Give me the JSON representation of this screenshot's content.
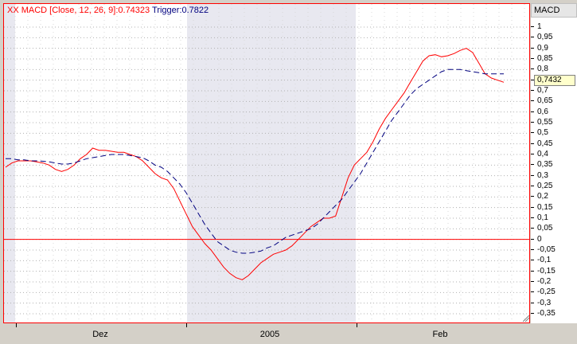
{
  "legend": {
    "text_macd": "XX MACD [Close, 12, 26, 9]:0.74323",
    "text_trigger": "Trigger:0.7822"
  },
  "axis": {
    "title": "MACD",
    "current_value_tag": "0,7432"
  },
  "colors": {
    "macd_line": "#ff0000",
    "trigger_line": "#00007f",
    "zero_line": "#ff0000",
    "shaded_band": "#e8e8f0",
    "frame": "#ff0000"
  },
  "chart_data": {
    "type": "line",
    "title": "",
    "xlabel": "",
    "ylabel": "MACD",
    "ylim": [
      -0.38,
      1.02
    ],
    "y_ticks": [
      "1",
      "0,95",
      "0,9",
      "0,85",
      "0,8",
      "0,75",
      "0,7",
      "0,65",
      "0,6",
      "0,55",
      "0,5",
      "0,45",
      "0,4",
      "0,35",
      "0,3",
      "0,25",
      "0,2",
      "0,15",
      "0,1",
      "0,05",
      "0",
      "-0,05",
      "-0,1",
      "-0,15",
      "-0,2",
      "-0,25",
      "-0,3",
      "-0,35"
    ],
    "x_ticks": [
      "Dez",
      "2005",
      "Feb"
    ],
    "grid": true,
    "shaded_ranges": [
      [
        0,
        2
      ],
      [
        46,
        84
      ]
    ],
    "series": [
      {
        "name": "MACD",
        "values": [
          0.34,
          0.36,
          0.37,
          0.37,
          0.37,
          0.365,
          0.36,
          0.35,
          0.33,
          0.32,
          0.33,
          0.35,
          0.38,
          0.4,
          0.43,
          0.42,
          0.42,
          0.415,
          0.41,
          0.41,
          0.4,
          0.39,
          0.37,
          0.34,
          0.31,
          0.29,
          0.28,
          0.24,
          0.18,
          0.12,
          0.06,
          0.02,
          -0.02,
          -0.05,
          -0.09,
          -0.13,
          -0.16,
          -0.18,
          -0.19,
          -0.17,
          -0.14,
          -0.11,
          -0.09,
          -0.07,
          -0.06,
          -0.05,
          -0.03,
          0.0,
          0.03,
          0.06,
          0.08,
          0.1,
          0.1,
          0.11,
          0.2,
          0.29,
          0.35,
          0.38,
          0.41,
          0.46,
          0.52,
          0.57,
          0.61,
          0.65,
          0.69,
          0.74,
          0.79,
          0.84,
          0.865,
          0.87,
          0.86,
          0.865,
          0.875,
          0.89,
          0.9,
          0.88,
          0.83,
          0.78,
          0.76,
          0.75,
          0.74
        ]
      },
      {
        "name": "Trigger",
        "values": [
          0.38,
          0.38,
          0.375,
          0.375,
          0.37,
          0.37,
          0.368,
          0.365,
          0.36,
          0.355,
          0.355,
          0.36,
          0.37,
          0.38,
          0.385,
          0.39,
          0.395,
          0.4,
          0.4,
          0.4,
          0.395,
          0.39,
          0.385,
          0.37,
          0.35,
          0.34,
          0.32,
          0.29,
          0.26,
          0.22,
          0.17,
          0.12,
          0.07,
          0.03,
          -0.01,
          -0.03,
          -0.05,
          -0.06,
          -0.065,
          -0.065,
          -0.06,
          -0.055,
          -0.04,
          -0.03,
          -0.01,
          0.01,
          0.02,
          0.03,
          0.04,
          0.05,
          0.07,
          0.1,
          0.13,
          0.16,
          0.19,
          0.23,
          0.27,
          0.31,
          0.36,
          0.41,
          0.46,
          0.51,
          0.56,
          0.6,
          0.64,
          0.68,
          0.71,
          0.73,
          0.75,
          0.77,
          0.79,
          0.8,
          0.8,
          0.8,
          0.795,
          0.79,
          0.785,
          0.78,
          0.78,
          0.78,
          0.78
        ]
      }
    ]
  }
}
